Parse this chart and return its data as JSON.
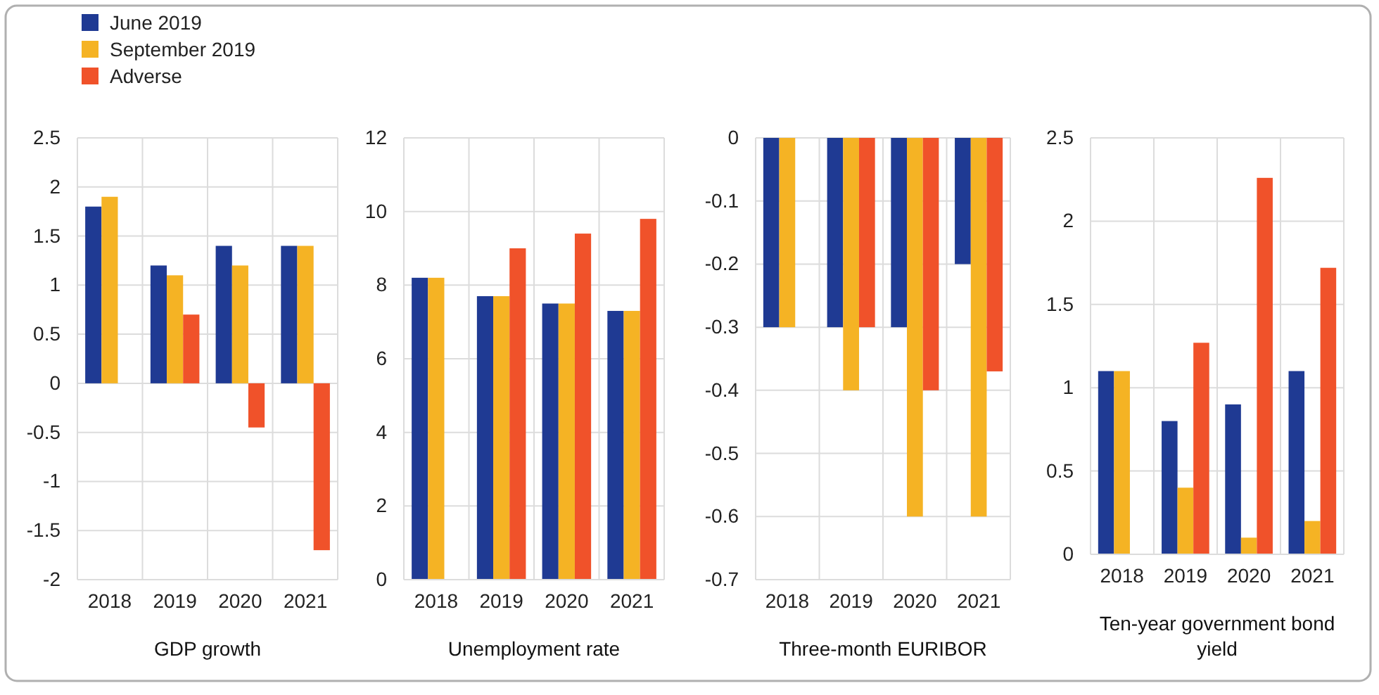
{
  "chart_data": [
    {
      "type": "bar",
      "xlabel": "GDP growth",
      "categories": [
        "2018",
        "2019",
        "2020",
        "2021"
      ],
      "ylim": [
        -2,
        2.5
      ],
      "yticks": [
        -2,
        -1.5,
        -1,
        -0.5,
        0,
        0.5,
        1,
        1.5,
        2,
        2.5
      ],
      "grid": true,
      "legend": "top left",
      "series": [
        {
          "name": "June 2019",
          "color": "#1f3a93",
          "values": [
            1.8,
            1.2,
            1.4,
            1.4
          ]
        },
        {
          "name": "September 2019",
          "color": "#f5b324",
          "values": [
            1.9,
            1.1,
            1.2,
            1.4
          ]
        },
        {
          "name": "Adverse",
          "color": "#f0522a",
          "values": [
            null,
            0.7,
            -0.45,
            -1.7
          ]
        }
      ]
    },
    {
      "type": "bar",
      "xlabel": "Unemployment rate",
      "categories": [
        "2018",
        "2019",
        "2020",
        "2021"
      ],
      "ylim": [
        0,
        12
      ],
      "yticks": [
        0,
        2,
        4,
        6,
        8,
        10,
        12
      ],
      "grid": true,
      "series": [
        {
          "color": "#1f3a93",
          "values": [
            8.2,
            7.7,
            7.5,
            7.3
          ]
        },
        {
          "color": "#f5b324",
          "values": [
            8.2,
            7.7,
            7.5,
            7.3
          ]
        },
        {
          "color": "#f0522a",
          "values": [
            null,
            9.0,
            9.4,
            9.8
          ]
        }
      ]
    },
    {
      "type": "bar",
      "xlabel": "Three-month EURIBOR",
      "categories": [
        "2018",
        "2019",
        "2020",
        "2021"
      ],
      "ylim": [
        -0.7,
        0
      ],
      "yticks": [
        -0.7,
        -0.6,
        -0.5,
        -0.4,
        -0.3,
        -0.2,
        -0.1,
        0
      ],
      "grid": true,
      "series": [
        {
          "color": "#1f3a93",
          "values": [
            -0.3,
            -0.3,
            -0.3,
            -0.2
          ]
        },
        {
          "color": "#f5b324",
          "values": [
            -0.3,
            -0.4,
            -0.6,
            -0.6
          ]
        },
        {
          "color": "#f0522a",
          "values": [
            null,
            -0.3,
            -0.4,
            -0.37
          ]
        }
      ]
    },
    {
      "type": "bar",
      "xlabel": "Ten-year government bond yield",
      "categories": [
        "2018",
        "2019",
        "2020",
        "2021"
      ],
      "ylim": [
        0,
        2.5
      ],
      "yticks": [
        0,
        0.5,
        1,
        1.5,
        2,
        2.5
      ],
      "grid": true,
      "series": [
        {
          "color": "#1f3a93",
          "values": [
            1.1,
            0.8,
            0.9,
            1.1
          ]
        },
        {
          "color": "#f5b324",
          "values": [
            1.1,
            0.4,
            0.1,
            0.2
          ]
        },
        {
          "color": "#f0522a",
          "values": [
            null,
            1.27,
            2.26,
            1.72
          ]
        }
      ]
    }
  ]
}
